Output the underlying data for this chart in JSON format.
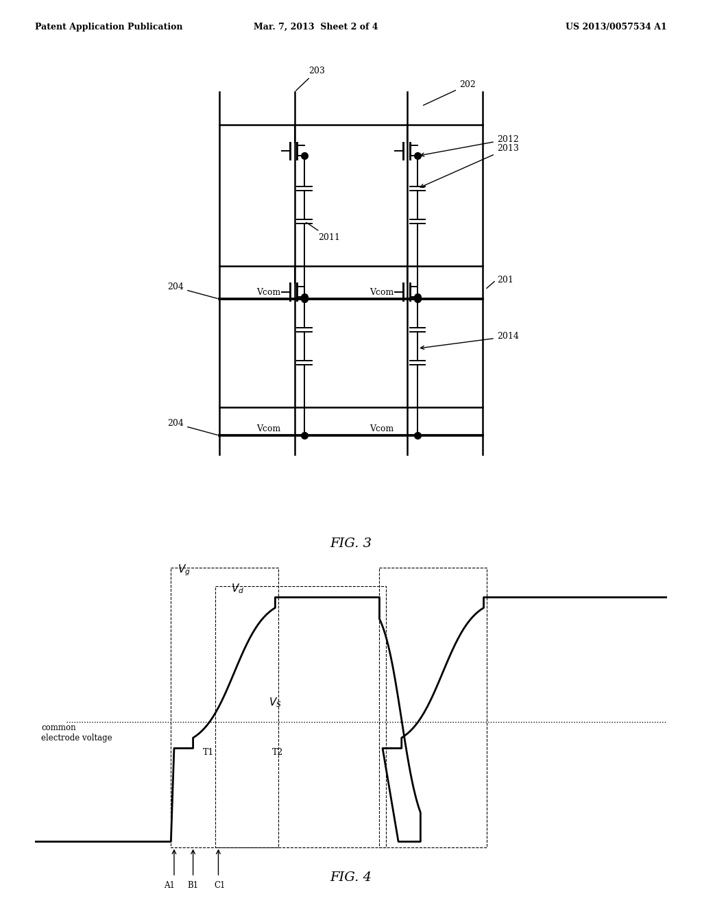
{
  "header_left": "Patent Application Publication",
  "header_mid": "Mar. 7, 2013  Sheet 2 of 4",
  "header_right": "US 2013/0057534 A1",
  "fig3_label": "FIG. 3",
  "fig4_label": "FIG. 4",
  "bg_color": "#ffffff",
  "line_color": "#000000",
  "label_203": "203",
  "label_202": "202",
  "label_2013": "2013",
  "label_2012": "2012",
  "label_2011": "2011",
  "label_201": "201",
  "label_204": "204",
  "label_2014": "2014",
  "vcom_label": "Vcom",
  "vg_label": "Vg",
  "vd_label": "Vd",
  "vs_label": "VS",
  "t1_label": "T1",
  "t2_label": "T2",
  "a1_label": "A1",
  "b1_label": "B1",
  "c1_label": "C1",
  "common_electrode_label": "common\nelectrode voltage"
}
